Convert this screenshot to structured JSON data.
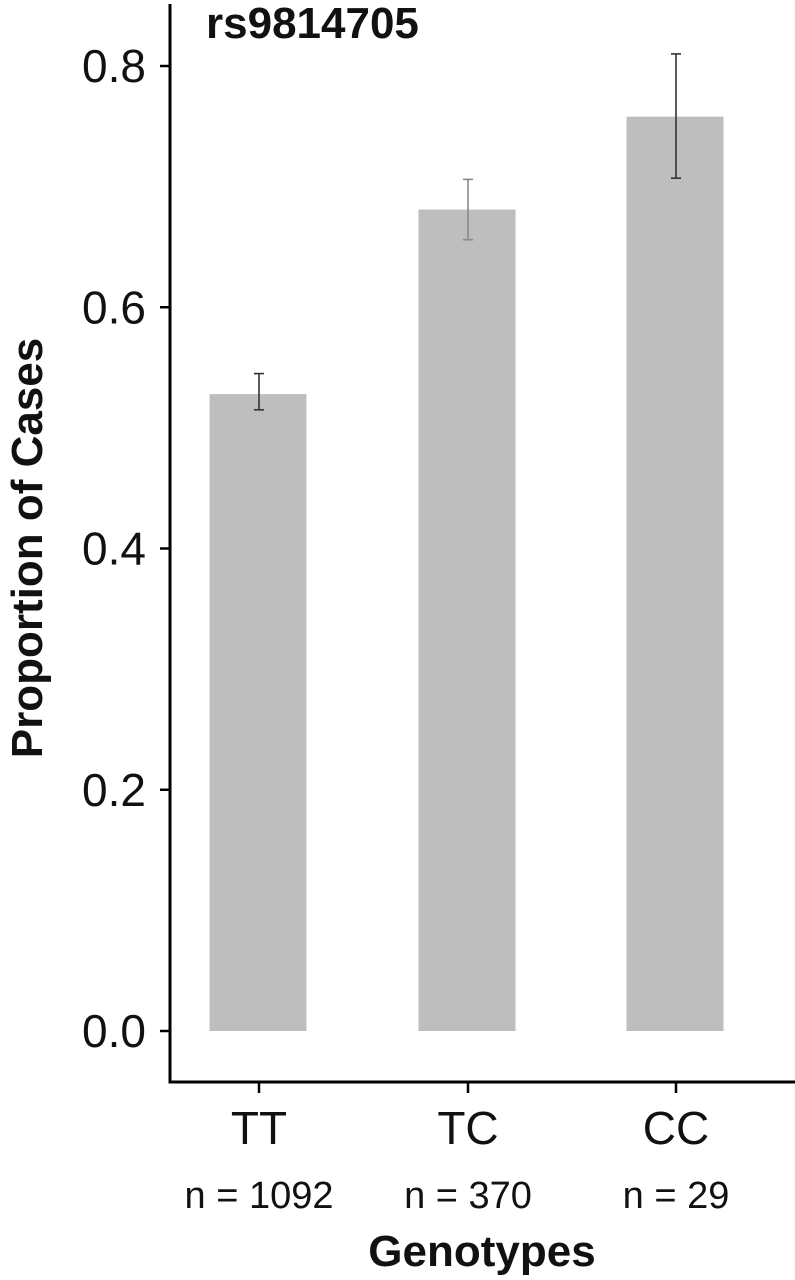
{
  "chart_data": {
    "type": "bar",
    "title": "rs9814705",
    "xlabel": "Genotypes",
    "ylabel": "Proportion of Cases",
    "categories": [
      "TT",
      "TC",
      "CC"
    ],
    "sample_sizes": [
      "n = 1092",
      "n = 370",
      "n = 29"
    ],
    "values": [
      0.528,
      0.681,
      0.758
    ],
    "error_low": [
      0.515,
      0.656,
      0.707
    ],
    "error_high": [
      0.545,
      0.706,
      0.81
    ],
    "ylim": [
      -0.04,
      0.84
    ],
    "yticks": [
      0.0,
      0.2,
      0.4,
      0.6,
      0.8
    ],
    "ytick_labels": [
      "0.0",
      "0.2",
      "0.4",
      "0.6",
      "0.8"
    ],
    "grid": false,
    "bar_color": "#bebebe",
    "errorbar_colors": [
      "#333333",
      "#8a8a8a",
      "#333333"
    ],
    "axis_color": "#000000"
  }
}
